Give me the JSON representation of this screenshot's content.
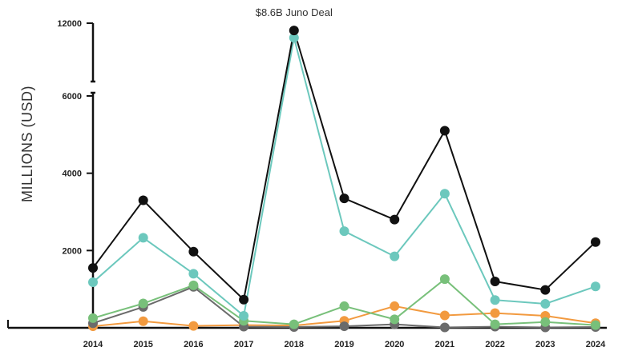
{
  "chart_data": {
    "type": "line",
    "title": "",
    "xlabel": "",
    "ylabel": "MILLIONS (USD)",
    "x": [
      "2014",
      "2015",
      "2016",
      "2017",
      "2018",
      "2019",
      "2020",
      "2021",
      "2022",
      "2023",
      "2024"
    ],
    "y_ticks": [
      {
        "value": 2000,
        "label": "2000"
      },
      {
        "value": 4000,
        "label": "4000"
      },
      {
        "value": 6000,
        "label": "6000"
      },
      {
        "value": 12000,
        "label": "12000"
      }
    ],
    "y_axis_break": {
      "from": 6000,
      "to": 12000
    },
    "grid": false,
    "legend": "none",
    "annotation": {
      "text": "$8.6B Juno Deal",
      "x": "2018"
    },
    "series": [
      {
        "color": "#111111",
        "values": [
          1550,
          3300,
          1970,
          730,
          11750,
          3350,
          2800,
          5100,
          1200,
          980,
          2220
        ]
      },
      {
        "color": "#6cc8bd",
        "values": [
          1180,
          2330,
          1400,
          310,
          11500,
          2500,
          1850,
          3470,
          720,
          620,
          1070
        ]
      },
      {
        "color": "#78c07a",
        "values": [
          250,
          630,
          1100,
          180,
          90,
          560,
          220,
          1260,
          90,
          150,
          70
        ]
      },
      {
        "color": "#6b6b6b",
        "values": [
          120,
          540,
          1060,
          30,
          20,
          40,
          90,
          10,
          30,
          10,
          20
        ]
      },
      {
        "color": "#f29a3f",
        "values": [
          40,
          170,
          50,
          70,
          60,
          180,
          560,
          320,
          380,
          310,
          120
        ]
      }
    ]
  }
}
